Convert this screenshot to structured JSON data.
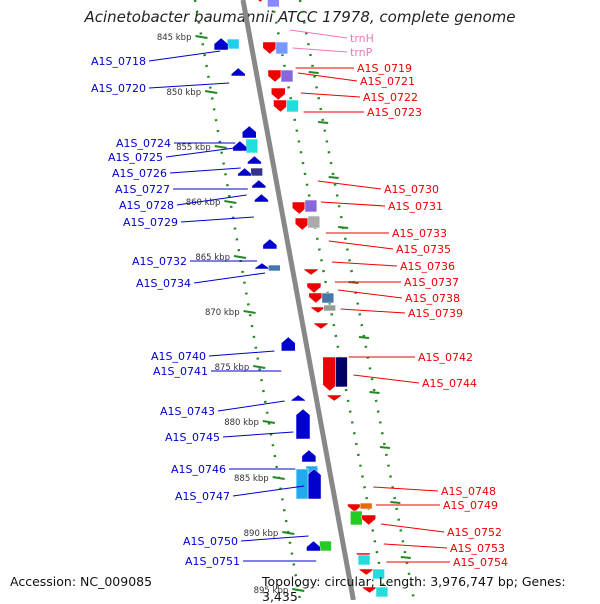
{
  "title": "Acinetobacter baumannii ATCC 17978, complete genome",
  "accession": "Accession: NC_009085",
  "summary": "Topology: circular; Length: 3,976,747 bp; Genes: 3,435",
  "colors": {
    "forward_gene": "#ee0000",
    "reverse_gene": "#0000cc",
    "rna_gene": "#ee77bb",
    "scale_tick": "#228822",
    "backbone": "#888888"
  },
  "scale_labels": [
    "845 kbp",
    "850 kbp",
    "855 kbp",
    "860 kbp",
    "865 kbp",
    "870 kbp",
    "875 kbp",
    "880 kbp",
    "885 kbp",
    "890 kbp",
    "895 kbp"
  ],
  "left_labels": [
    "A1S_0718",
    "A1S_0720",
    "A1S_0724",
    "A1S_0725",
    "A1S_0726",
    "A1S_0727",
    "A1S_0728",
    "A1S_0729",
    "A1S_0732",
    "A1S_0734",
    "A1S_0740",
    "A1S_0741",
    "A1S_0743",
    "A1S_0745",
    "A1S_0746",
    "A1S_0747",
    "A1S_0750",
    "A1S_0751"
  ],
  "right_labels": [
    "trnH",
    "trnP",
    "A1S_0719",
    "A1S_0721",
    "A1S_0722",
    "A1S_0723",
    "A1S_0730",
    "A1S_0731",
    "A1S_0733",
    "A1S_0735",
    "A1S_0736",
    "A1S_0737",
    "A1S_0738",
    "A1S_0739",
    "A1S_0742",
    "A1S_0744",
    "A1S_0748",
    "A1S_0749",
    "A1S_0752",
    "A1S_0753",
    "A1S_0754"
  ]
}
